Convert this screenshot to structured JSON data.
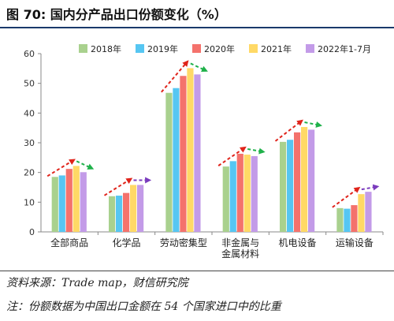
{
  "figure_title": "图 70:  国内分产品出口份额变化（%）",
  "source_note": "资料来源：Trade map，财信研究院",
  "footnote": "注：份额数据为中国出口金额在 54 个国家进口中的比重",
  "colors": {
    "series": [
      "#a9d18e",
      "#56c6f2",
      "#f4726c",
      "#ffd966",
      "#c39be8"
    ],
    "red_arrow": "#e0241b",
    "green_arrow": "#1fb14a",
    "purple_arrow": "#7a3bbd",
    "title_rule": "#1a3a6b"
  },
  "chart_data": {
    "type": "bar",
    "title": "",
    "xlabel": "",
    "ylabel": "",
    "ylim": [
      0,
      60
    ],
    "yticks": [
      0,
      10,
      20,
      30,
      40,
      50,
      60
    ],
    "grid": false,
    "legend": "top-right",
    "categories": [
      [
        "全部商品"
      ],
      [
        "化学品"
      ],
      [
        "劳动密集型"
      ],
      [
        "非金属与",
        "金属材料"
      ],
      [
        "机电设备"
      ],
      [
        "运输设备"
      ]
    ],
    "series": [
      {
        "name": "2018年",
        "values": [
          18.5,
          12.0,
          46.8,
          22.0,
          30.3,
          8.0
        ]
      },
      {
        "name": "2019年",
        "values": [
          19.0,
          12.2,
          48.4,
          23.8,
          31.0,
          7.8
        ]
      },
      {
        "name": "2020年",
        "values": [
          21.2,
          13.1,
          52.5,
          26.3,
          33.5,
          9.0
        ]
      },
      {
        "name": "2021年",
        "values": [
          22.2,
          15.8,
          55.1,
          26.0,
          35.3,
          12.7
        ]
      },
      {
        "name": "2022年1-7月",
        "values": [
          20.1,
          15.8,
          53.0,
          25.5,
          34.4,
          13.5
        ]
      }
    ],
    "trend_arrows": [
      {
        "from": 18.5,
        "to": 22.2,
        "to2": 20.1,
        "end_color": "green"
      },
      {
        "from": 12.0,
        "to": 15.8,
        "to2": 15.8,
        "end_color": "purple"
      },
      {
        "from": 46.8,
        "to": 55.1,
        "to2": 53.0,
        "end_color": "green"
      },
      {
        "from": 22.0,
        "to": 26.3,
        "to2": 25.5,
        "end_color": "green"
      },
      {
        "from": 30.3,
        "to": 35.3,
        "to2": 34.4,
        "end_color": "green"
      },
      {
        "from": 8.0,
        "to": 12.7,
        "to2": 13.5,
        "end_color": "purple"
      }
    ]
  }
}
